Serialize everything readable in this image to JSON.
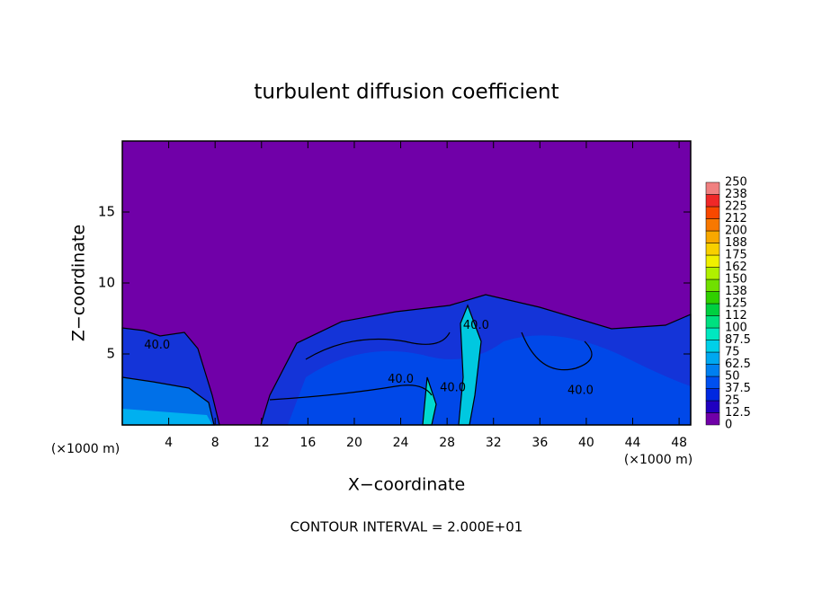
{
  "chart_data": {
    "type": "contour",
    "title": "turbulent diffusion coefficient",
    "x_label": "X−coordinate",
    "y_label": "Z−coordinate",
    "x_unit": "(×1000 m)",
    "x_unit_right": "(×1000 m)",
    "footer": "CONTOUR INTERVAL = 2.000E+01",
    "background_color": "#7000a8",
    "xlim": [
      0,
      49
    ],
    "ylim": [
      0,
      20
    ],
    "xticks": [
      4,
      8,
      12,
      16,
      20,
      24,
      28,
      32,
      36,
      40,
      44,
      48
    ],
    "yticks": [
      5,
      10,
      15
    ],
    "colorbar": {
      "ticks": [
        0,
        12.5,
        25,
        37.5,
        50,
        62.5,
        75,
        87.5,
        100,
        {
          "value": 112.5,
          "label": "112"
        },
        125,
        {
          "value": 137.5,
          "label": "138"
        },
        150,
        {
          "value": 162.5,
          "label": "162"
        },
        175,
        {
          "value": 187.5,
          "label": "188"
        },
        200,
        {
          "value": 212.5,
          "label": "212"
        },
        225,
        {
          "value": 237.5,
          "label": "238"
        },
        250
      ],
      "colors": [
        "#7000a8",
        "#2000c0",
        "#0028e0",
        "#0050f0",
        "#0080f0",
        "#00a8f0",
        "#00d0e8",
        "#00e8c0",
        "#00e080",
        "#00d040",
        "#30d000",
        "#70e000",
        "#b0f000",
        "#f0f000",
        "#f8d000",
        "#f8a800",
        "#f87800",
        "#f84800",
        "#f02828",
        "#f08080"
      ]
    },
    "contour_labels": [
      {
        "text": "40.0",
        "x": 3,
        "z": 5.6
      },
      {
        "text": "40.0",
        "x": 24,
        "z": 3.2
      },
      {
        "text": "40.0",
        "x": 28.5,
        "z": 2.6
      },
      {
        "text": "40.0",
        "x": 30.5,
        "z": 7
      },
      {
        "text": "40.0",
        "x": 39.5,
        "z": 2.4
      }
    ]
  }
}
